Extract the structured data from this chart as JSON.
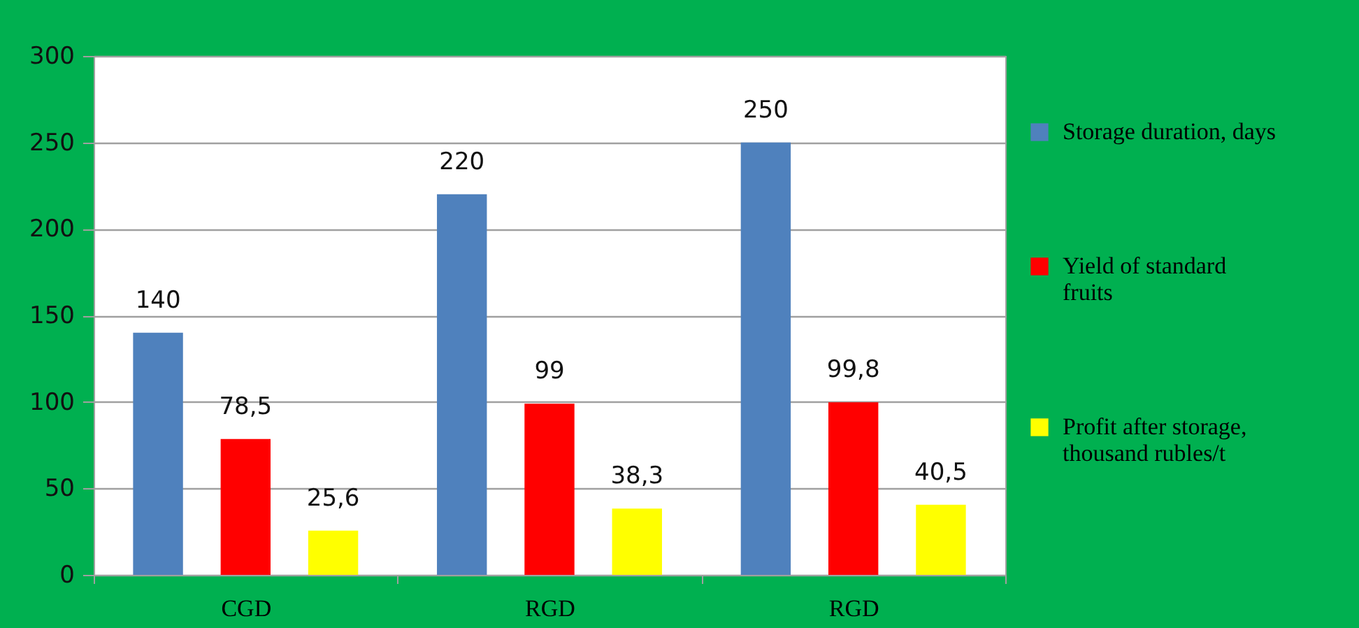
{
  "chart_data": {
    "type": "bar",
    "categories": [
      "CGD",
      "RGD",
      "RGD"
    ],
    "series": [
      {
        "name": "Storage duration, days",
        "color": "#4f81bd",
        "values": [
          140,
          220,
          250
        ],
        "value_labels": [
          "140",
          "220",
          "250"
        ]
      },
      {
        "name": "Yield of standard fruits",
        "color": "#ff0000",
        "values": [
          78.5,
          99,
          99.8
        ],
        "value_labels": [
          "78,5",
          "99",
          "99,8"
        ]
      },
      {
        "name": "Profit after storage, thousand rubles/t",
        "color": "#ffff00",
        "values": [
          25.6,
          38.3,
          40.5
        ],
        "value_labels": [
          "25,6",
          "38,3",
          "40,5"
        ]
      }
    ],
    "ylim": [
      0,
      300
    ],
    "yticks": [
      0,
      50,
      100,
      150,
      200,
      250,
      300
    ],
    "grid": "y",
    "legend": "right"
  }
}
